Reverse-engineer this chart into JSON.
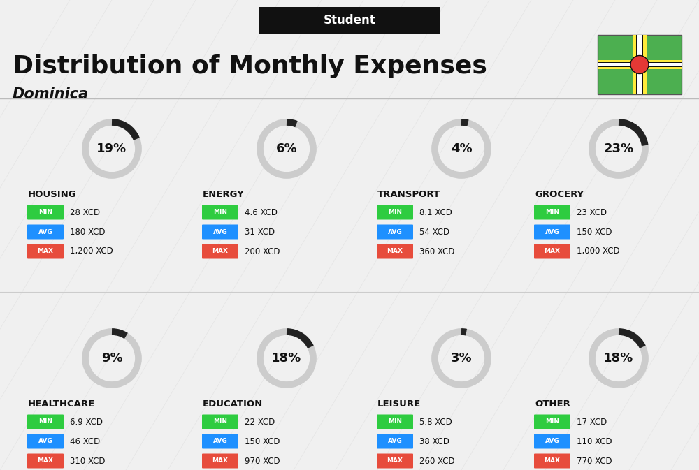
{
  "title": "Distribution of Monthly Expenses",
  "subtitle": "Student",
  "country": "Dominica",
  "bg_color": "#f0f0f0",
  "categories": [
    {
      "name": "HOUSING",
      "pct": 19,
      "min": "28 XCD",
      "avg": "180 XCD",
      "max": "1,200 XCD",
      "col": 0,
      "row": 0
    },
    {
      "name": "ENERGY",
      "pct": 6,
      "min": "4.6 XCD",
      "avg": "31 XCD",
      "max": "200 XCD",
      "col": 1,
      "row": 0
    },
    {
      "name": "TRANSPORT",
      "pct": 4,
      "min": "8.1 XCD",
      "avg": "54 XCD",
      "max": "360 XCD",
      "col": 2,
      "row": 0
    },
    {
      "name": "GROCERY",
      "pct": 23,
      "min": "23 XCD",
      "avg": "150 XCD",
      "max": "1,000 XCD",
      "col": 3,
      "row": 0
    },
    {
      "name": "HEALTHCARE",
      "pct": 9,
      "min": "6.9 XCD",
      "avg": "46 XCD",
      "max": "310 XCD",
      "col": 0,
      "row": 1
    },
    {
      "name": "EDUCATION",
      "pct": 18,
      "min": "22 XCD",
      "avg": "150 XCD",
      "max": "970 XCD",
      "col": 1,
      "row": 1
    },
    {
      "name": "LEISURE",
      "pct": 3,
      "min": "5.8 XCD",
      "avg": "38 XCD",
      "max": "260 XCD",
      "col": 2,
      "row": 1
    },
    {
      "name": "OTHER",
      "pct": 18,
      "min": "17 XCD",
      "avg": "110 XCD",
      "max": "770 XCD",
      "col": 3,
      "row": 1
    }
  ],
  "min_color": "#2ecc40",
  "avg_color": "#1e90ff",
  "max_color": "#e74c3c",
  "label_color": "#ffffff",
  "text_color": "#111111",
  "ring_dark": "#222222",
  "ring_light": "#cccccc"
}
